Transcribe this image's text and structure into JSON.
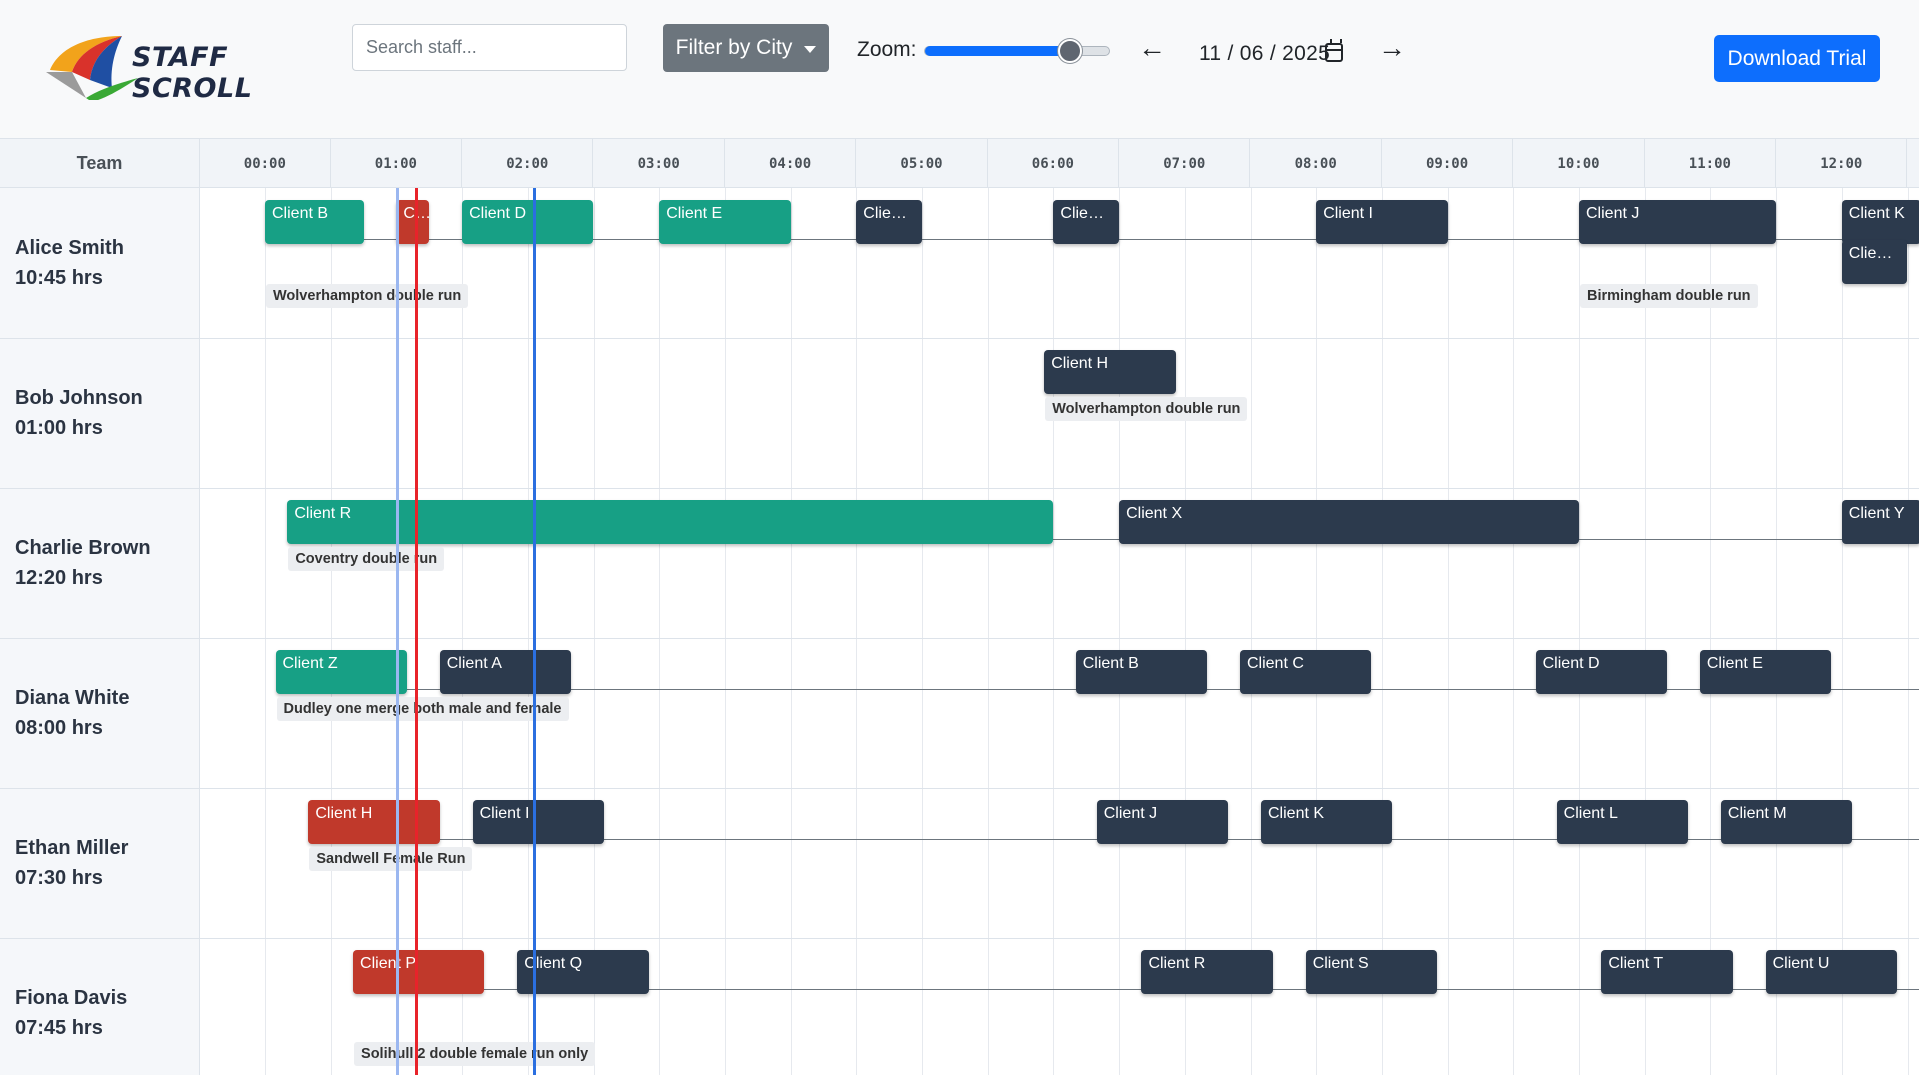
{
  "app": {
    "logo_text": "STAFF SCROLL",
    "search_placeholder": "Search staff...",
    "filter_label": "Filter by City",
    "zoom_label": "Zoom:",
    "zoom_value": 0.78,
    "date_value": "11 / 06 / 2025",
    "prev_arrow": "←",
    "next_arrow": "→",
    "download_label": "Download Trial"
  },
  "colors": {
    "teal": "#17a085",
    "navy": "#2c3a4d",
    "red": "#c0392b",
    "blue_line": "#2b6fe0",
    "red_line": "#e8232a"
  },
  "timeline": {
    "team_header": "Team",
    "hours": [
      "00:00",
      "01:00",
      "02:00",
      "03:00",
      "04:00",
      "05:00",
      "06:00",
      "07:00",
      "08:00",
      "09:00",
      "10:00",
      "11:00",
      "12:00"
    ],
    "current_time_marker": 1.15,
    "selected_time_marker": 2.05,
    "staff": [
      {
        "name": "Alice Smith",
        "hours": "10:45 hrs",
        "shifts": [
          {
            "label": "Client B",
            "start": 0.0,
            "end": 0.75,
            "color": "teal"
          },
          {
            "label": "Client C",
            "start": 1.0,
            "end": 1.25,
            "color": "red"
          },
          {
            "label": "Client D",
            "start": 1.5,
            "end": 2.5,
            "color": "teal"
          },
          {
            "label": "Client E",
            "start": 3.0,
            "end": 4.0,
            "color": "teal"
          },
          {
            "label": "Client F",
            "start": 4.5,
            "end": 5.0,
            "color": "navy"
          },
          {
            "label": "Client G",
            "start": 6.0,
            "end": 6.5,
            "color": "navy"
          },
          {
            "label": "Client I",
            "start": 8.0,
            "end": 9.0,
            "color": "navy"
          },
          {
            "label": "Client J",
            "start": 10.0,
            "end": 11.5,
            "color": "navy"
          },
          {
            "label": "Client K",
            "start": 12.0,
            "end": 12.6,
            "color": "navy"
          },
          {
            "label": "Client L",
            "start": 12.0,
            "end": 12.5,
            "color": "navy",
            "lane": 2
          }
        ],
        "runs": [
          {
            "label": "Wolverhampton double run",
            "start": 0.0
          },
          {
            "label": "Birmingham double run",
            "start": 10.0
          }
        ]
      },
      {
        "name": "Bob Johnson",
        "hours": "01:00 hrs",
        "shifts": [
          {
            "label": "Client H",
            "start": 5.93,
            "end": 6.93,
            "color": "navy"
          }
        ],
        "runs": [
          {
            "label": "Wolverhampton double run",
            "start": 5.93
          }
        ]
      },
      {
        "name": "Charlie Brown",
        "hours": "12:20 hrs",
        "shifts": [
          {
            "label": "Client R",
            "start": 0.17,
            "end": 6.0,
            "color": "teal"
          },
          {
            "label": "Client X",
            "start": 6.5,
            "end": 10.0,
            "color": "navy"
          },
          {
            "label": "Client Y",
            "start": 12.0,
            "end": 12.6,
            "color": "navy"
          }
        ],
        "runs": [
          {
            "label": "Coventry double run",
            "start": 0.17
          }
        ]
      },
      {
        "name": "Diana White",
        "hours": "08:00 hrs",
        "shifts": [
          {
            "label": "Client Z",
            "start": 0.08,
            "end": 1.08,
            "color": "teal"
          },
          {
            "label": "Client A",
            "start": 1.33,
            "end": 2.33,
            "color": "navy"
          },
          {
            "label": "Client B",
            "start": 6.17,
            "end": 7.17,
            "color": "navy"
          },
          {
            "label": "Client C",
            "start": 7.42,
            "end": 8.42,
            "color": "navy"
          },
          {
            "label": "Client D",
            "start": 9.67,
            "end": 10.67,
            "color": "navy"
          },
          {
            "label": "Client E",
            "start": 10.92,
            "end": 11.92,
            "color": "navy"
          }
        ],
        "runs": [
          {
            "label": "Dudley one merge both male and female",
            "start": 0.08
          }
        ]
      },
      {
        "name": "Ethan Miller",
        "hours": "07:30 hrs",
        "shifts": [
          {
            "label": "Client H",
            "start": 0.33,
            "end": 1.33,
            "color": "red"
          },
          {
            "label": "Client I",
            "start": 1.58,
            "end": 2.58,
            "color": "navy"
          },
          {
            "label": "Client J",
            "start": 6.33,
            "end": 7.33,
            "color": "navy"
          },
          {
            "label": "Client K",
            "start": 7.58,
            "end": 8.58,
            "color": "navy"
          },
          {
            "label": "Client L",
            "start": 9.83,
            "end": 10.83,
            "color": "navy"
          },
          {
            "label": "Client M",
            "start": 11.08,
            "end": 12.08,
            "color": "navy"
          }
        ],
        "runs": [
          {
            "label": "Sandwell Female Run",
            "start": 0.33
          }
        ]
      },
      {
        "name": "Fiona Davis",
        "hours": "07:45 hrs",
        "shifts": [
          {
            "label": "Client P",
            "start": 0.67,
            "end": 1.67,
            "color": "red"
          },
          {
            "label": "Client Q",
            "start": 1.92,
            "end": 2.92,
            "color": "navy"
          },
          {
            "label": "Client R",
            "start": 6.67,
            "end": 7.67,
            "color": "navy"
          },
          {
            "label": "Client S",
            "start": 7.92,
            "end": 8.92,
            "color": "navy"
          },
          {
            "label": "Client T",
            "start": 10.17,
            "end": 11.17,
            "color": "navy"
          },
          {
            "label": "Client U",
            "start": 11.42,
            "end": 12.42,
            "color": "navy"
          }
        ],
        "runs": [
          {
            "label": "Solihull 2 double female run only",
            "start": 0.67
          }
        ]
      }
    ]
  }
}
